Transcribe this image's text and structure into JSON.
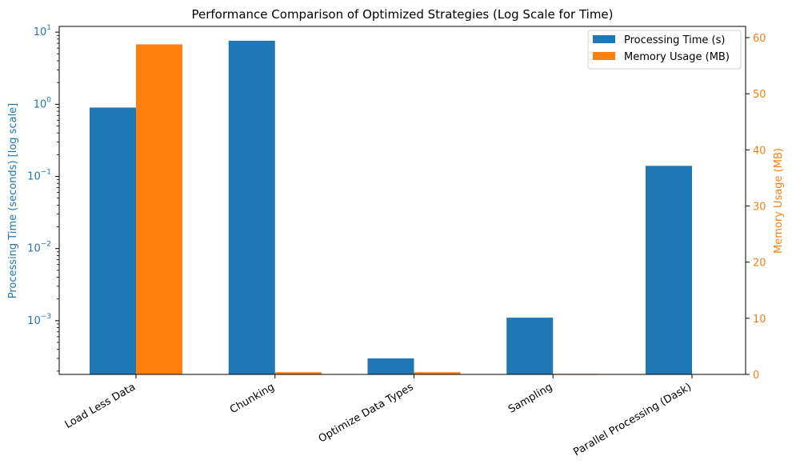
{
  "chart_data": {
    "type": "bar",
    "title": "Performance Comparison of Optimized Strategies (Log Scale for Time)",
    "categories": [
      "Load Less Data",
      "Chunking",
      "Optimize Data Types",
      "Sampling",
      "Parallel Processing (Dask)"
    ],
    "series": [
      {
        "name": "Processing Time (s)",
        "axis": "left",
        "color": "#1f77b4",
        "values": [
          0.9,
          7.6,
          0.0003,
          0.0011,
          0.14
        ]
      },
      {
        "name": "Memory Usage (MB)",
        "axis": "right",
        "color": "#ff7f0e",
        "values": [
          58.8,
          0.4,
          0.4,
          0.1,
          0.0
        ]
      }
    ],
    "y_left": {
      "label": "Processing Time (seconds) [log scale]",
      "scale": "log",
      "range": [
        0.00018,
        12
      ],
      "ticks": [
        {
          "value": 0.001,
          "base": "10",
          "exp": "−3"
        },
        {
          "value": 0.01,
          "base": "10",
          "exp": "−2"
        },
        {
          "value": 0.1,
          "base": "10",
          "exp": "−1"
        },
        {
          "value": 1,
          "base": "10",
          "exp": "0"
        },
        {
          "value": 10,
          "base": "10",
          "exp": "1"
        }
      ],
      "color": "#1f77b4"
    },
    "y_right": {
      "label": "Memory Usage (MB)",
      "scale": "linear",
      "range": [
        0,
        62
      ],
      "ticks": [
        0,
        10,
        20,
        30,
        40,
        50,
        60
      ],
      "color": "#ff7f0e"
    },
    "legend_position": "top-right",
    "grid": false
  }
}
